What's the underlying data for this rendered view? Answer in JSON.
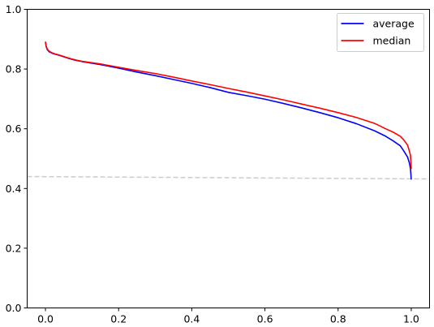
{
  "chart_data": {
    "type": "line",
    "title": "",
    "xlabel": "",
    "ylabel": "",
    "xlim": [
      -0.05,
      1.05
    ],
    "ylim": [
      0.0,
      1.0
    ],
    "xticks": [
      0.0,
      0.2,
      0.4,
      0.6,
      0.8,
      1.0
    ],
    "xtick_labels": [
      "0.0",
      "0.2",
      "0.4",
      "0.6",
      "0.8",
      "1.0"
    ],
    "yticks": [
      0.0,
      0.2,
      0.4,
      0.6,
      0.8,
      1.0
    ],
    "ytick_labels": [
      "0.0",
      "0.2",
      "0.4",
      "0.6",
      "0.8",
      "1.0"
    ],
    "grid": false,
    "legend": "top-right",
    "series": [
      {
        "name": "average",
        "color": "#0000ff",
        "x": [
          0.0,
          0.002,
          0.005,
          0.01,
          0.02,
          0.04,
          0.06,
          0.08,
          0.1,
          0.15,
          0.2,
          0.25,
          0.3,
          0.35,
          0.4,
          0.45,
          0.5,
          0.55,
          0.6,
          0.65,
          0.7,
          0.75,
          0.8,
          0.85,
          0.9,
          0.93,
          0.95,
          0.97,
          0.98,
          0.99,
          0.995,
          0.998,
          1.0
        ],
        "y": [
          0.89,
          0.875,
          0.865,
          0.858,
          0.852,
          0.845,
          0.837,
          0.83,
          0.825,
          0.815,
          0.803,
          0.79,
          0.778,
          0.765,
          0.752,
          0.738,
          0.722,
          0.711,
          0.699,
          0.685,
          0.67,
          0.654,
          0.637,
          0.617,
          0.593,
          0.575,
          0.56,
          0.543,
          0.525,
          0.505,
          0.485,
          0.465,
          0.43
        ]
      },
      {
        "name": "median",
        "color": "#ff0000",
        "x": [
          0.0,
          0.002,
          0.005,
          0.01,
          0.02,
          0.04,
          0.06,
          0.08,
          0.1,
          0.15,
          0.2,
          0.25,
          0.3,
          0.35,
          0.4,
          0.45,
          0.5,
          0.55,
          0.6,
          0.65,
          0.7,
          0.75,
          0.8,
          0.85,
          0.9,
          0.93,
          0.95,
          0.97,
          0.98,
          0.99,
          0.995,
          0.998,
          1.0
        ],
        "y": [
          0.892,
          0.877,
          0.867,
          0.86,
          0.853,
          0.846,
          0.838,
          0.831,
          0.826,
          0.817,
          0.806,
          0.795,
          0.785,
          0.773,
          0.76,
          0.748,
          0.735,
          0.723,
          0.71,
          0.697,
          0.683,
          0.669,
          0.654,
          0.638,
          0.618,
          0.6,
          0.589,
          0.575,
          0.562,
          0.545,
          0.525,
          0.51,
          0.465
        ]
      }
    ],
    "reference_line": {
      "style": "dashed",
      "color": "#cccccc",
      "x": [
        -0.05,
        1.05
      ],
      "y": [
        0.44,
        0.432
      ]
    }
  }
}
